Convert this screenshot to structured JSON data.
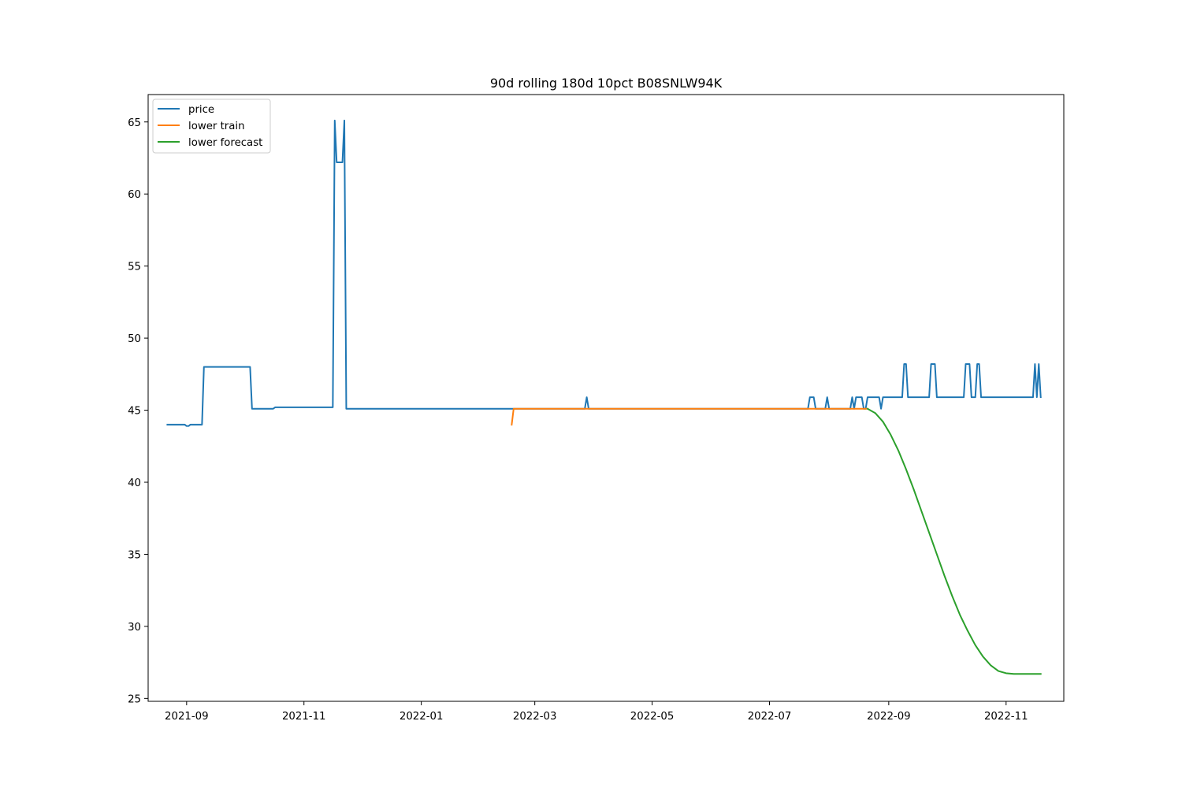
{
  "chart_data": {
    "type": "line",
    "title": "90d rolling 180d 10pct B08SNLW94K",
    "xlabel": "",
    "ylabel": "",
    "xlim": [
      "2021-08-12",
      "2022-12-01"
    ],
    "ylim": [
      24.8,
      66.9
    ],
    "x_ticks": [
      "2021-09-01",
      "2021-11-01",
      "2022-01-01",
      "2022-03-01",
      "2022-05-01",
      "2022-07-01",
      "2022-09-01",
      "2022-11-01"
    ],
    "x_tick_labels": [
      "2021-09",
      "2021-11",
      "2022-01",
      "2022-03",
      "2022-05",
      "2022-07",
      "2022-09",
      "2022-11"
    ],
    "y_ticks": [
      25,
      30,
      35,
      40,
      45,
      50,
      55,
      60,
      65
    ],
    "y_tick_labels": [
      "25",
      "30",
      "35",
      "40",
      "45",
      "50",
      "55",
      "60",
      "65"
    ],
    "legend_location": "upper-left",
    "series": [
      {
        "name": "price",
        "color": "#1f77b4",
        "points": [
          [
            "2021-08-22",
            44.0
          ],
          [
            "2021-08-31",
            44.0
          ],
          [
            "2021-09-01",
            43.9
          ],
          [
            "2021-09-02",
            43.9
          ],
          [
            "2021-09-03",
            44.0
          ],
          [
            "2021-09-09",
            44.0
          ],
          [
            "2021-09-10",
            48.0
          ],
          [
            "2021-10-04",
            48.0
          ],
          [
            "2021-10-05",
            45.1
          ],
          [
            "2021-10-16",
            45.1
          ],
          [
            "2021-10-17",
            45.2
          ],
          [
            "2021-11-16",
            45.2
          ],
          [
            "2021-11-17",
            65.1
          ],
          [
            "2021-11-18",
            62.2
          ],
          [
            "2021-11-21",
            62.2
          ],
          [
            "2021-11-22",
            65.1
          ],
          [
            "2021-11-23",
            45.1
          ],
          [
            "2022-03-27",
            45.1
          ],
          [
            "2022-03-28",
            45.9
          ],
          [
            "2022-03-29",
            45.1
          ],
          [
            "2022-07-21",
            45.1
          ],
          [
            "2022-07-22",
            45.9
          ],
          [
            "2022-07-24",
            45.9
          ],
          [
            "2022-07-25",
            45.1
          ],
          [
            "2022-07-30",
            45.1
          ],
          [
            "2022-07-31",
            45.9
          ],
          [
            "2022-08-01",
            45.1
          ],
          [
            "2022-08-12",
            45.1
          ],
          [
            "2022-08-13",
            45.9
          ],
          [
            "2022-08-14",
            45.1
          ],
          [
            "2022-08-15",
            45.9
          ],
          [
            "2022-08-18",
            45.9
          ],
          [
            "2022-08-19",
            45.1
          ],
          [
            "2022-08-20",
            45.1
          ],
          [
            "2022-08-21",
            45.9
          ],
          [
            "2022-08-27",
            45.9
          ],
          [
            "2022-08-28",
            45.1
          ],
          [
            "2022-08-29",
            45.9
          ],
          [
            "2022-09-08",
            45.9
          ],
          [
            "2022-09-09",
            48.2
          ],
          [
            "2022-09-10",
            48.2
          ],
          [
            "2022-09-11",
            45.9
          ],
          [
            "2022-09-22",
            45.9
          ],
          [
            "2022-09-23",
            48.2
          ],
          [
            "2022-09-25",
            48.2
          ],
          [
            "2022-09-26",
            45.9
          ],
          [
            "2022-10-10",
            45.9
          ],
          [
            "2022-10-11",
            48.2
          ],
          [
            "2022-10-13",
            48.2
          ],
          [
            "2022-10-14",
            45.9
          ],
          [
            "2022-10-16",
            45.9
          ],
          [
            "2022-10-17",
            48.2
          ],
          [
            "2022-10-18",
            48.2
          ],
          [
            "2022-10-19",
            45.9
          ],
          [
            "2022-11-15",
            45.9
          ],
          [
            "2022-11-16",
            48.2
          ],
          [
            "2022-11-17",
            45.9
          ],
          [
            "2022-11-18",
            48.2
          ],
          [
            "2022-11-19",
            45.9
          ]
        ]
      },
      {
        "name": "lower train",
        "color": "#ff7f0e",
        "points": [
          [
            "2022-02-17",
            44.0
          ],
          [
            "2022-02-18",
            45.1
          ],
          [
            "2022-08-21",
            45.1
          ]
        ]
      },
      {
        "name": "lower forecast",
        "color": "#2ca02c",
        "points": [
          [
            "2022-08-21",
            45.1
          ],
          [
            "2022-08-25",
            44.8
          ],
          [
            "2022-08-29",
            44.2
          ],
          [
            "2022-09-02",
            43.3
          ],
          [
            "2022-09-06",
            42.2
          ],
          [
            "2022-09-10",
            40.9
          ],
          [
            "2022-09-14",
            39.5
          ],
          [
            "2022-09-18",
            38.0
          ],
          [
            "2022-09-22",
            36.5
          ],
          [
            "2022-09-26",
            35.0
          ],
          [
            "2022-09-30",
            33.5
          ],
          [
            "2022-10-04",
            32.1
          ],
          [
            "2022-10-08",
            30.8
          ],
          [
            "2022-10-12",
            29.7
          ],
          [
            "2022-10-16",
            28.7
          ],
          [
            "2022-10-20",
            27.9
          ],
          [
            "2022-10-24",
            27.3
          ],
          [
            "2022-10-28",
            26.9
          ],
          [
            "2022-11-01",
            26.75
          ],
          [
            "2022-11-05",
            26.7
          ],
          [
            "2022-11-19",
            26.7
          ]
        ]
      }
    ]
  }
}
